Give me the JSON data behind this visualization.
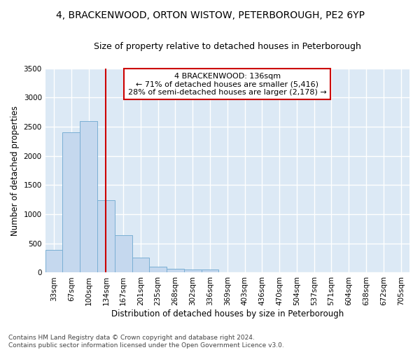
{
  "title_line1": "4, BRACKENWOOD, ORTON WISTOW, PETERBOROUGH, PE2 6YP",
  "title_line2": "Size of property relative to detached houses in Peterborough",
  "xlabel": "Distribution of detached houses by size in Peterborough",
  "ylabel": "Number of detached properties",
  "footnote": "Contains HM Land Registry data © Crown copyright and database right 2024.\nContains public sector information licensed under the Open Government Licence v3.0.",
  "bin_labels": [
    "33sqm",
    "67sqm",
    "100sqm",
    "134sqm",
    "167sqm",
    "201sqm",
    "235sqm",
    "268sqm",
    "302sqm",
    "336sqm",
    "369sqm",
    "403sqm",
    "436sqm",
    "470sqm",
    "504sqm",
    "537sqm",
    "571sqm",
    "604sqm",
    "638sqm",
    "672sqm",
    "705sqm"
  ],
  "bar_values": [
    390,
    2400,
    2600,
    1240,
    640,
    260,
    100,
    60,
    55,
    50,
    0,
    0,
    0,
    0,
    0,
    0,
    0,
    0,
    0,
    0,
    0
  ],
  "bar_color": "#c5d8ee",
  "bar_edge_color": "#7aafd4",
  "vline_x": 3,
  "vline_color": "#cc0000",
  "annotation_text": "4 BRACKENWOOD: 136sqm\n← 71% of detached houses are smaller (5,416)\n28% of semi-detached houses are larger (2,178) →",
  "annotation_box_color": "white",
  "annotation_box_edge_color": "#cc0000",
  "ylim": [
    0,
    3500
  ],
  "yticks": [
    0,
    500,
    1000,
    1500,
    2000,
    2500,
    3000,
    3500
  ],
  "background_color": "#dce9f5",
  "grid_color": "white",
  "title_fontsize": 10,
  "subtitle_fontsize": 9,
  "annotation_fontsize": 8,
  "axis_label_fontsize": 8.5,
  "tick_fontsize": 7.5,
  "footnote_fontsize": 6.5
}
